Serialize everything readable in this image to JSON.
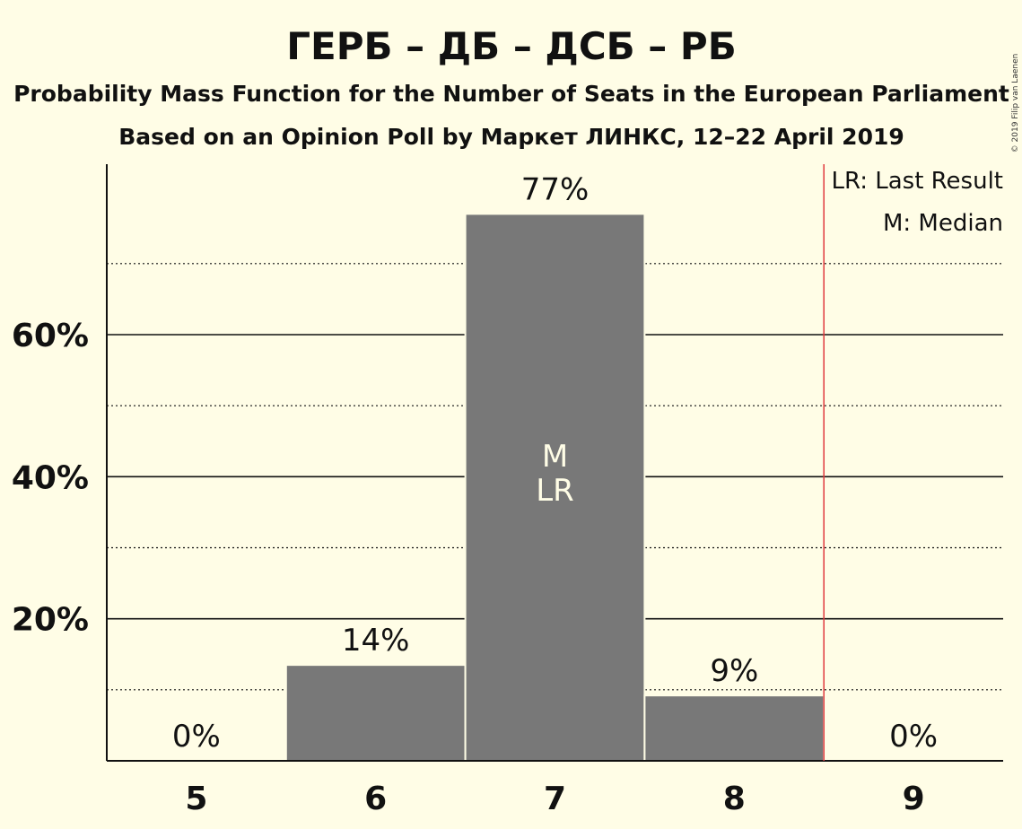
{
  "chart_data": {
    "type": "bar",
    "title": "ГЕРБ – ДБ – ДСБ – РБ",
    "subtitle": "Probability Mass Function for the Number of Seats in the European Parliament",
    "subtitle2": "Based on an Opinion Poll by Маркет ЛИНКС, 12–22 April 2019",
    "categories": [
      "5",
      "6",
      "7",
      "8",
      "9"
    ],
    "values": [
      0,
      13.5,
      77,
      9.2,
      0
    ],
    "value_labels": [
      "0%",
      "14%",
      "77%",
      "9%",
      "0%"
    ],
    "ylim": [
      0,
      84
    ],
    "yticks": [
      20,
      40,
      60
    ],
    "ytick_labels": [
      "20%",
      "40%",
      "60%"
    ],
    "minor_gridlines": [
      10,
      30,
      50,
      70
    ],
    "median_seat": "7",
    "last_result_seat": "7",
    "median_marker": "M",
    "last_result_marker": "LR",
    "threshold_after_category": "8",
    "legend": [
      "LR: Last Result",
      "M: Median"
    ],
    "legend_position": "top-right",
    "bar_color": "#787878",
    "threshold_color": "#E0393E",
    "background": "#FFFDE6"
  },
  "copyright": "© 2019 Filip van Laenen"
}
